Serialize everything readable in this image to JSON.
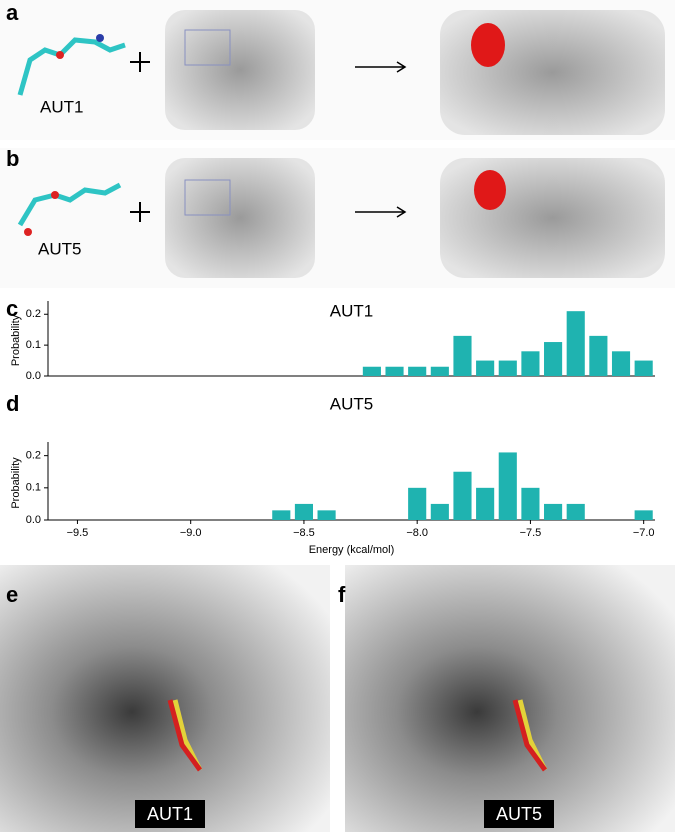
{
  "figure": {
    "panel_labels": [
      "a",
      "b",
      "c",
      "d",
      "e",
      "f"
    ],
    "scheme_labels": [
      "AUT1",
      "AUT5"
    ],
    "surface_labels": [
      "AUT1",
      "AUT5"
    ]
  },
  "chart_data": [
    {
      "type": "bar",
      "title": "AUT1",
      "ylabel": "Probability",
      "color": "#1fb3b0",
      "x": [
        -8.2,
        -8.1,
        -8.0,
        -7.9,
        -7.8,
        -7.7,
        -7.6,
        -7.5,
        -7.4,
        -7.3,
        -7.2,
        -7.1,
        -7.0
      ],
      "values": [
        0.03,
        0.03,
        0.03,
        0.03,
        0.13,
        0.05,
        0.05,
        0.08,
        0.11,
        0.21,
        0.13,
        0.08,
        0.05
      ],
      "xlim": [
        -9.63,
        -6.95
      ],
      "ylim": [
        0,
        0.23
      ],
      "yticks": [
        {
          "value": 0,
          "label": "0.0"
        },
        0.1,
        0.2
      ]
    },
    {
      "type": "bar",
      "title": "AUT5",
      "ylabel": "Probability",
      "xlabel": "Energy (kcal/mol)",
      "color": "#1fb3b0",
      "x": [
        -8.6,
        -8.5,
        -8.4,
        -8.0,
        -7.9,
        -7.8,
        -7.7,
        -7.6,
        -7.5,
        -7.4,
        -7.3,
        -7.0
      ],
      "values": [
        0.03,
        0.05,
        0.03,
        0.1,
        0.05,
        0.15,
        0.1,
        0.21,
        0.1,
        0.05,
        0.05,
        0.03
      ],
      "xlim": [
        -9.63,
        -6.95
      ],
      "ylim": [
        0,
        0.23
      ],
      "yticks": [
        {
          "value": 0,
          "label": "0.0"
        },
        0.1,
        0.2
      ],
      "xticks": [
        {
          "value": -9.5,
          "label": "−9.5"
        },
        {
          "value": -9.0,
          "label": "−9.0"
        },
        {
          "value": -8.5,
          "label": "−8.5"
        },
        {
          "value": -8.0,
          "label": "−8.0"
        },
        {
          "value": -7.5,
          "label": "−7.5"
        },
        {
          "value": -7.0,
          "label": "−7.0"
        }
      ]
    }
  ]
}
